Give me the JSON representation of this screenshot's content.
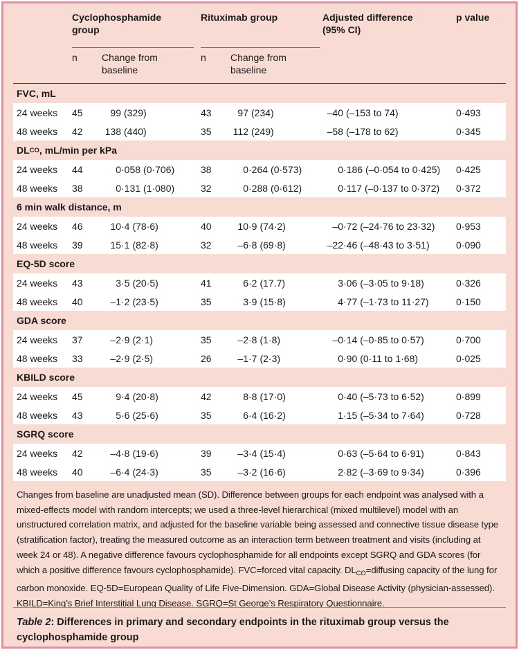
{
  "table": {
    "caption_label": "Table 2",
    "caption_text": ": Differences in primary and secondary endpoints in the rituximab group versus the cyclophosphamide group",
    "header": {
      "group1": "Cyclophosphamide group",
      "group2": "Rituximab group",
      "n_label1": "n",
      "n_label2": "n",
      "change_label1": "Change from baseline",
      "change_label2": "Change from baseline",
      "diff_label": "Adjusted difference (95% CI)",
      "p_label": "p value"
    },
    "sections": [
      {
        "title": [
          {
            "t": "FVC, mL"
          }
        ],
        "rows": [
          [
            "24 weeks",
            "45",
            "99 (329)",
            "43",
            "97 (234)",
            "–40 (–153 to 74)",
            "0·493"
          ],
          [
            "48 weeks",
            "42",
            "138 (440)",
            "35",
            "112 (249)",
            "–58 (–178 to 62)",
            "0·345"
          ]
        ]
      },
      {
        "title": [
          {
            "t": "DL"
          },
          {
            "t": "CO",
            "sub": true
          },
          {
            "t": ", mL/min per kPa"
          }
        ],
        "rows": [
          [
            "24 weeks",
            "44",
            "0·058 (0·706)",
            "38",
            "0·264 (0·573)",
            "0·186 (–0·054 to 0·425)",
            "0·425"
          ],
          [
            "48 weeks",
            "38",
            "0·131 (1·080)",
            "32",
            "0·288 (0·612)",
            "0·117 (–0·137 to 0·372)",
            "0·372"
          ]
        ]
      },
      {
        "title": [
          {
            "t": "6 min walk distance, m"
          }
        ],
        "rows": [
          [
            "24 weeks",
            "46",
            "10·4 (78·6)",
            "40",
            "10·9 (74·2)",
            "–0·72 (–24·76 to 23·32)",
            "0·953"
          ],
          [
            "48 weeks",
            "39",
            "15·1 (82·8)",
            "32",
            "–6·8 (69·8)",
            "–22·46 (–48·43 to 3·51)",
            "0·090"
          ]
        ]
      },
      {
        "title": [
          {
            "t": "EQ-5D score"
          }
        ],
        "rows": [
          [
            "24 weeks",
            "43",
            "3·5 (20·5)",
            "41",
            "6·2 (17.7)",
            "3·06 (–3·05 to 9·18)",
            "0·326"
          ],
          [
            "48 weeks",
            "40",
            "–1·2 (23·5)",
            "35",
            "3·9 (15·8)",
            "4·77 (–1·73 to 11·27)",
            "0·150"
          ]
        ]
      },
      {
        "title": [
          {
            "t": "GDA score"
          }
        ],
        "rows": [
          [
            "24 weeks",
            "37",
            "–2·9 (2·1)",
            "35",
            "–2·8 (1·8)",
            "–0·14 (–0·85 to 0·57)",
            "0·700"
          ],
          [
            "48 weeks",
            "33",
            "–2·9 (2·5)",
            "26",
            "–1·7 (2·3)",
            "0·90 (0·11 to 1·68)",
            "0·025"
          ]
        ]
      },
      {
        "title": [
          {
            "t": "KBILD score"
          }
        ],
        "rows": [
          [
            "24 weeks",
            "45",
            "9·4 (20·8)",
            "42",
            "8·8 (17·0)",
            "0·40 (–5·73 to 6·52)",
            "0·899"
          ],
          [
            "48 weeks",
            "43",
            "5·6 (25·6)",
            "35",
            "6·4 (16·2)",
            "1·15 (–5·34 to 7·64)",
            "0·728"
          ]
        ]
      },
      {
        "title": [
          {
            "t": "SGRQ score"
          }
        ],
        "rows": [
          [
            "24 weeks",
            "42",
            "–4·8 (19·6)",
            "39",
            "–3·4 (15·4)",
            "0·63 (–5·64 to 6·91)",
            "0·843"
          ],
          [
            "48 weeks",
            "40",
            "–6·4 (24·3)",
            "35",
            "–3·2 (16·6)",
            "2·82 (–3·69 to 9·34)",
            "0·396"
          ]
        ]
      }
    ],
    "footnote": [
      {
        "t": "Changes from baseline are unadjusted mean (SD). Difference between groups for each endpoint was analysed with a mixed-effects model with random intercepts; we used a three-level hierarchical (mixed multilevel) model with an unstructured correlation matrix, and adjusted for the baseline variable being assessed and connective tissue disease type (stratification factor), treating the measured outcome as an interaction term between treatment and visits (including at week 24 or 48). A negative difference favours cyclophosphamide for all endpoints except SGRQ and GDA scores (for which a positive difference favours cyclophosphamide). FVC=forced vital capacity. DL"
      },
      {
        "t": "CO",
        "sub": true
      },
      {
        "t": "=diffusing capacity of the lung for carbon monoxide. EQ-5D=European Quality of Life Five-Dimension. GDA=Global Disease Activity (physician-assessed). KBILD=King’s Brief Interstitial Lung Disease. SGRQ=St George’s Respiratory Questionnaire."
      }
    ],
    "colors": {
      "background": "#f8dbd3",
      "border": "#e0919e",
      "row_white": "#ffffff",
      "text": "#1b1b1b",
      "header_rule": "#3a3a3a",
      "caption_rule": "#8a8a8a"
    }
  }
}
